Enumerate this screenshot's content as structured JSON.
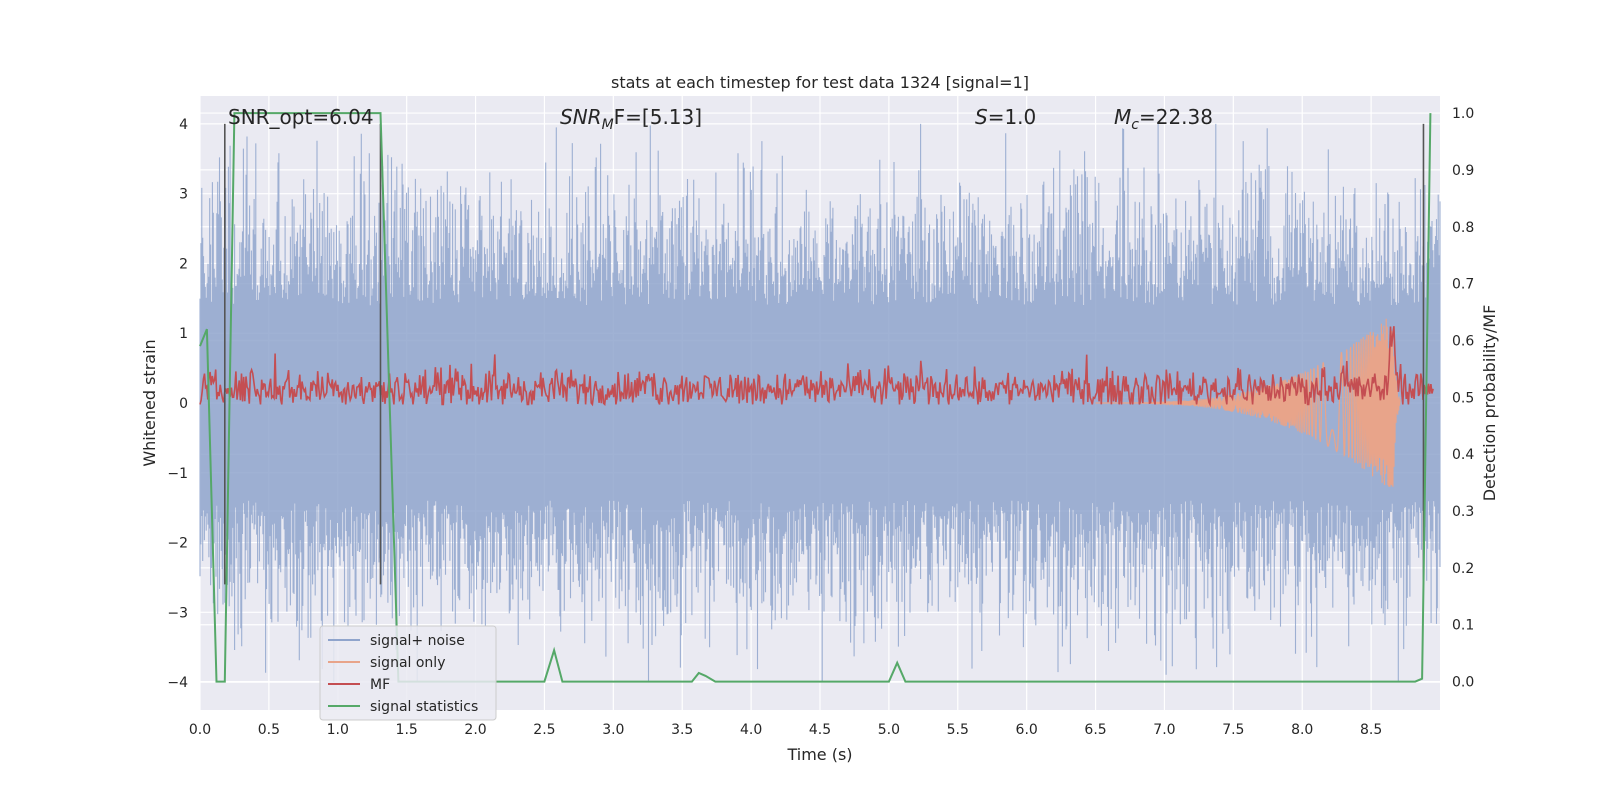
{
  "chart_data": {
    "type": "line",
    "title": "stats at each timestep for test data 1324 [signal=1]",
    "xlabel": "Time (s)",
    "ylabel": "Whitened strain",
    "ylabel_right": "Detection probability/MF",
    "xlim": [
      0.0,
      9.0
    ],
    "ylim": [
      -4.4,
      4.4
    ],
    "ylim_right": [
      -0.05,
      1.03
    ],
    "x_ticks": [
      "0.0",
      "0.5",
      "1.0",
      "1.5",
      "2.0",
      "2.5",
      "3.0",
      "3.5",
      "4.0",
      "4.5",
      "5.0",
      "5.5",
      "6.0",
      "6.5",
      "7.0",
      "7.5",
      "8.0",
      "8.5"
    ],
    "y_ticks": [
      "−4",
      "−3",
      "−2",
      "−1",
      "0",
      "1",
      "2",
      "3",
      "4"
    ],
    "y_ticks_right": [
      "0.0",
      "0.1",
      "0.2",
      "0.3",
      "0.4",
      "0.5",
      "0.6",
      "0.7",
      "0.8",
      "0.9",
      "1.0"
    ],
    "grid": true,
    "legend_position": "lower-left",
    "annotations": {
      "snr_opt": "SNR_opt=6.04",
      "snr_mf_main": "SNR",
      "snr_mf_sub": "M",
      "snr_mf_rest": "F=[5.13]",
      "s_main": "S",
      "s_rest": "=1.0",
      "mc_main": "M",
      "mc_sub": "c",
      "mc_rest": "=22.38"
    },
    "vertical_markers": [
      0.18,
      1.31,
      8.88
    ],
    "series": [
      {
        "name": "signal+ noise",
        "color": "#8fa4cc",
        "axis": "left",
        "description_of_envelope": {
          "typical_peak_range": [
            1.5,
            3.5
          ],
          "max": 4.0,
          "min": -4.0
        }
      },
      {
        "name": "signal only",
        "color": "#e8a48a",
        "axis": "left",
        "chirp": {
          "start": 6.5,
          "peak_time": 8.66,
          "peak_amplitude": 1.3,
          "min": -1.2
        }
      },
      {
        "name": "MF",
        "color": "#c44e52",
        "axis": "left",
        "level": 0.2,
        "peak": {
          "x": 8.66,
          "y": 1.0
        }
      },
      {
        "name": "signal statistics",
        "color": "#55a868",
        "axis": "right",
        "points": [
          [
            0.0,
            0.59
          ],
          [
            0.05,
            0.62
          ],
          [
            0.12,
            0.0
          ],
          [
            0.18,
            0.0
          ],
          [
            0.25,
            1.0
          ],
          [
            1.31,
            1.0
          ],
          [
            1.44,
            0.0
          ],
          [
            2.5,
            0.0
          ],
          [
            2.57,
            0.055
          ],
          [
            2.63,
            0.0
          ],
          [
            3.57,
            0.0
          ],
          [
            3.62,
            0.015
          ],
          [
            3.67,
            0.01
          ],
          [
            3.74,
            0.0
          ],
          [
            5.0,
            0.0
          ],
          [
            5.06,
            0.033
          ],
          [
            5.12,
            0.0
          ],
          [
            8.82,
            0.0
          ],
          [
            8.87,
            0.005
          ],
          [
            8.93,
            1.0
          ]
        ]
      }
    ]
  }
}
